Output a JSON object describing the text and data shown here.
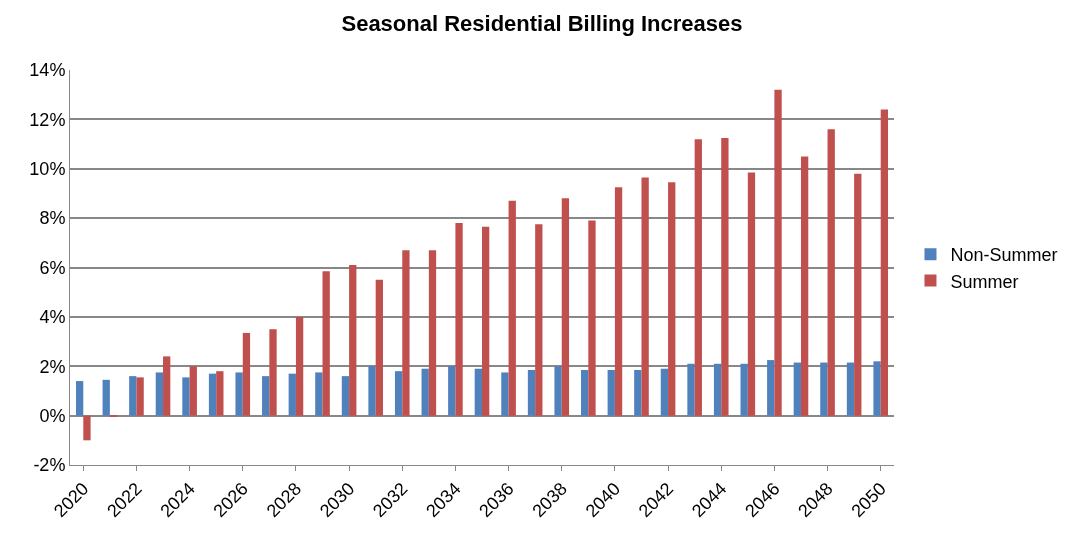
{
  "chart_data": {
    "type": "bar",
    "title": "Seasonal Residential Billing Increases",
    "categories": [
      "2020",
      null,
      "2022",
      null,
      "2024",
      null,
      "2026",
      null,
      "2028",
      null,
      "2030",
      null,
      "2032",
      null,
      "2034",
      null,
      "2036",
      null,
      "2038",
      null,
      "2040",
      null,
      "2042",
      null,
      "2044",
      null,
      "2046",
      null,
      "2048",
      null,
      "2050"
    ],
    "series": [
      {
        "name": "Non-Summer",
        "color": "#4f81bd",
        "values": [
          1.4,
          1.45,
          1.6,
          1.75,
          1.55,
          1.7,
          1.75,
          1.6,
          1.7,
          1.75,
          1.6,
          2.0,
          1.8,
          1.9,
          2.0,
          1.9,
          1.75,
          1.85,
          2.0,
          1.85,
          1.85,
          1.85,
          1.9,
          2.1,
          2.1,
          2.1,
          2.25,
          2.15,
          2.15,
          2.15,
          2.2
        ]
      },
      {
        "name": "Summer",
        "color": "#c0504d",
        "values": [
          -1.0,
          -0.05,
          1.55,
          2.4,
          2.0,
          1.8,
          3.35,
          3.5,
          4.0,
          5.85,
          6.1,
          5.5,
          6.7,
          6.7,
          7.8,
          7.65,
          8.7,
          7.75,
          8.8,
          7.9,
          9.25,
          9.65,
          9.45,
          11.2,
          11.25,
          9.85,
          13.2,
          10.5,
          11.6,
          9.8,
          12.4
        ]
      }
    ],
    "ylim": [
      -2,
      14
    ],
    "yticks": [
      {
        "value": -2,
        "label": "-2%"
      },
      {
        "value": 0,
        "label": "0%"
      },
      {
        "value": 2,
        "label": "2%"
      },
      {
        "value": 4,
        "label": "4%"
      },
      {
        "value": 6,
        "label": "6%"
      },
      {
        "value": 8,
        "label": "8%"
      },
      {
        "value": 10,
        "label": "10%"
      },
      {
        "value": 12,
        "label": "12%"
      },
      {
        "value": 14,
        "label": "14%"
      }
    ],
    "grid": "y",
    "legend": "right"
  }
}
